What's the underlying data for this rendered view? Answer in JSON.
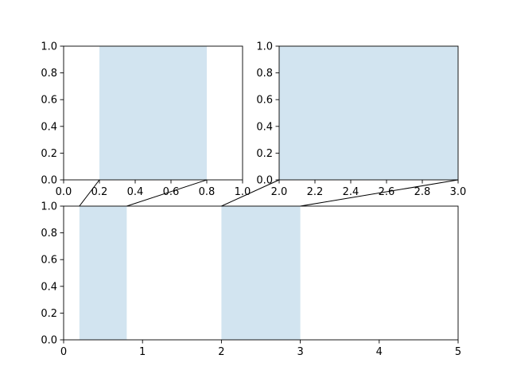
{
  "chart_data": [
    {
      "id": "top-left",
      "type": "area",
      "xlim": [
        0,
        1
      ],
      "ylim": [
        0,
        1
      ],
      "xticks": [
        "0.0",
        "0.2",
        "0.4",
        "0.6",
        "0.8",
        "1.0"
      ],
      "yticks": [
        "0.0",
        "0.2",
        "0.4",
        "0.6",
        "0.8",
        "1.0"
      ],
      "spans": [
        [
          0.2,
          0.8
        ]
      ],
      "grid": false
    },
    {
      "id": "top-right",
      "type": "area",
      "xlim": [
        2,
        3
      ],
      "ylim": [
        0,
        1
      ],
      "xticks": [
        "2.0",
        "2.2",
        "2.4",
        "2.6",
        "2.8",
        "3.0"
      ],
      "yticks": [
        "0.0",
        "0.2",
        "0.4",
        "0.6",
        "0.8",
        "1.0"
      ],
      "spans": [
        [
          2,
          3
        ]
      ],
      "grid": false
    },
    {
      "id": "bottom",
      "type": "area",
      "xlim": [
        0,
        5
      ],
      "ylim": [
        0,
        1
      ],
      "xticks": [
        "0",
        "1",
        "2",
        "3",
        "4",
        "5"
      ],
      "yticks": [
        "0.0",
        "0.2",
        "0.4",
        "0.6",
        "0.8",
        "1.0"
      ],
      "spans": [
        [
          0.2,
          0.8
        ],
        [
          2,
          3
        ]
      ],
      "grid": false
    }
  ],
  "connectors": [
    {
      "from": "top-left",
      "to": "bottom",
      "range": [
        0.2,
        0.8
      ]
    },
    {
      "from": "top-right",
      "to": "bottom",
      "range": [
        2,
        3
      ]
    }
  ],
  "colors": {
    "span": "#d2e4f0",
    "axis": "#000000"
  }
}
